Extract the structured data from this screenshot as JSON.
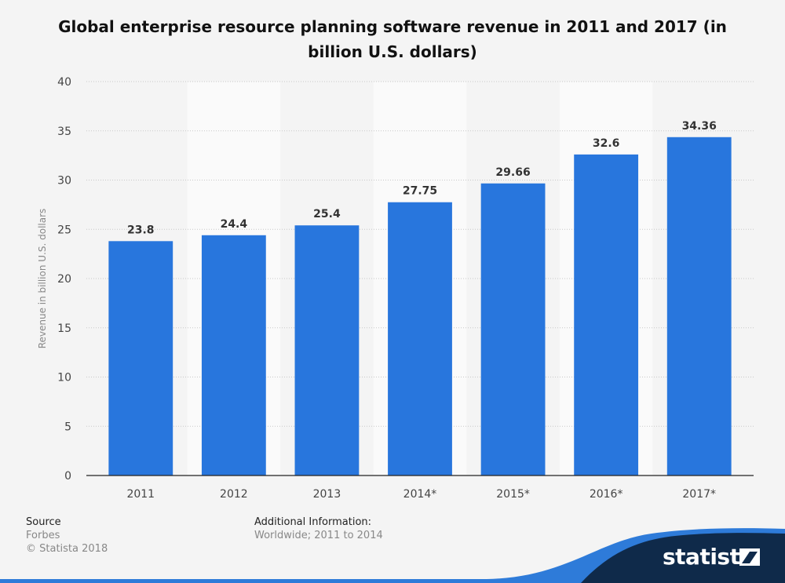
{
  "title": "Global enterprise resource planning software revenue in 2011 and 2017 (in billion U.S. dollars)",
  "source": {
    "heading": "Source",
    "name": "Forbes",
    "copyright": "© Statista 2018"
  },
  "additional_info": {
    "heading": "Additional Information:",
    "text": "Worldwide; 2011 to 2014"
  },
  "brand": {
    "name": "statista",
    "accent": "#2e7bd9",
    "dark": "#0f2a4a"
  },
  "chart_data": {
    "type": "bar",
    "categories": [
      "2011",
      "2012",
      "2013",
      "2014*",
      "2015*",
      "2016*",
      "2017*"
    ],
    "values": [
      23.8,
      24.4,
      25.4,
      27.75,
      29.66,
      32.6,
      34.36
    ],
    "data_labels": [
      "23.8",
      "24.4",
      "25.4",
      "27.75",
      "29.66",
      "32.6",
      "34.36"
    ],
    "ylabel": "Revenue in billion U.S. dollars",
    "xlabel": "",
    "ylim": [
      0,
      40
    ],
    "yticks": [
      0,
      5,
      10,
      15,
      20,
      25,
      30,
      35,
      40
    ],
    "bar_color": "#2876dd",
    "grid": true
  }
}
